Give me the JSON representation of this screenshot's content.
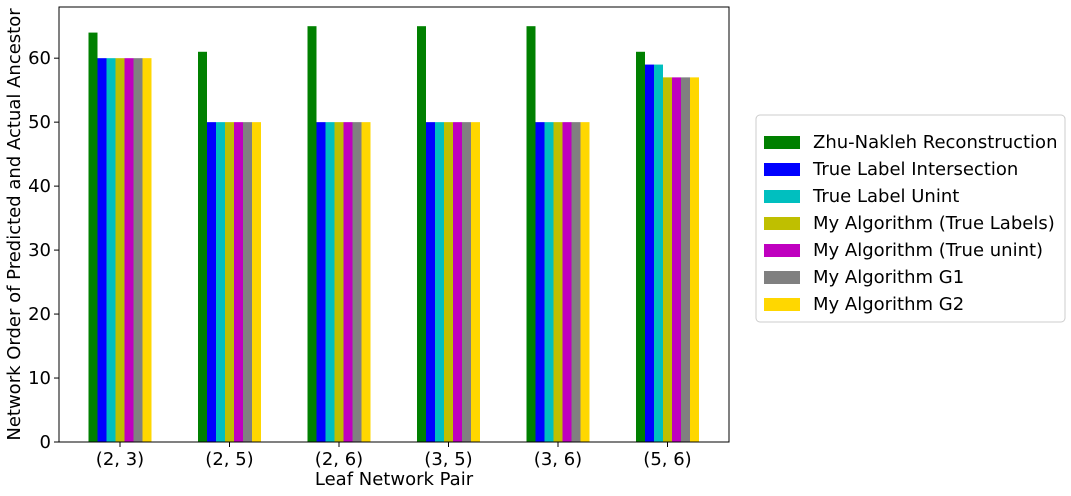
{
  "chart_data": {
    "type": "bar",
    "xlabel": "Leaf Network Pair",
    "ylabel": "Network Order of Predicted and Actual Ancestor",
    "ylim": [
      0,
      68
    ],
    "yticks": [
      "0",
      "10",
      "20",
      "30",
      "40",
      "50",
      "60"
    ],
    "grid": false,
    "legend_position": "right",
    "categories": [
      "(2, 3)",
      "(2, 5)",
      "(2, 6)",
      "(3, 5)",
      "(3, 6)",
      "(5, 6)"
    ],
    "series": [
      {
        "name": "Zhu-Nakleh Reconstruction",
        "color": "#008000",
        "values": [
          64,
          61,
          65,
          65,
          65,
          61
        ]
      },
      {
        "name": "True Label Intersection",
        "color": "#0000ff",
        "values": [
          60,
          50,
          50,
          50,
          50,
          59
        ]
      },
      {
        "name": "True Label Unint",
        "color": "#00bfbf",
        "values": [
          60,
          50,
          50,
          50,
          50,
          59
        ]
      },
      {
        "name": "My Algorithm (True Labels)",
        "color": "#bfbf00",
        "values": [
          60,
          50,
          50,
          50,
          50,
          57
        ]
      },
      {
        "name": "My Algorithm (True unint)",
        "color": "#bf00bf",
        "values": [
          60,
          50,
          50,
          50,
          50,
          57
        ]
      },
      {
        "name": "My Algorithm G1",
        "color": "#808080",
        "values": [
          60,
          50,
          50,
          50,
          50,
          57
        ]
      },
      {
        "name": "My Algorithm G2",
        "color": "#ffd700",
        "values": [
          60,
          50,
          50,
          50,
          50,
          57
        ]
      }
    ]
  }
}
